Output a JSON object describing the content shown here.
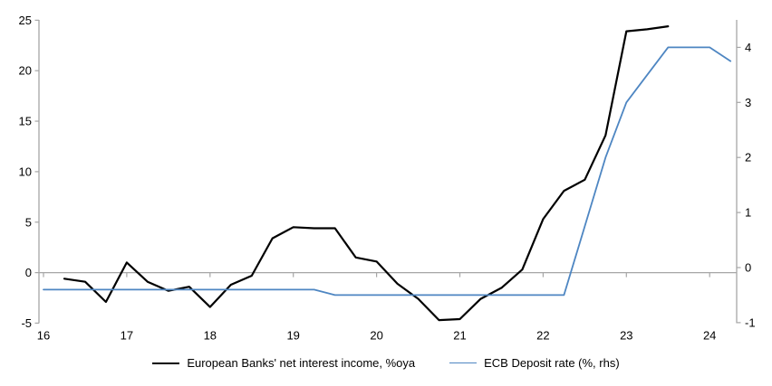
{
  "chart_data": {
    "type": "line",
    "title": "",
    "grid": "zero-line-only",
    "legend_position": "bottom-center",
    "x_axis": {
      "ticks": [
        16,
        17,
        18,
        19,
        20,
        21,
        22,
        23,
        24
      ],
      "tick_labels": [
        "16",
        "17",
        "18",
        "19",
        "20",
        "21",
        "22",
        "23",
        "24"
      ],
      "range": [
        15.95,
        24.33
      ]
    },
    "left_axis": {
      "ticks": [
        -5,
        0,
        5,
        10,
        15,
        20,
        25
      ],
      "tick_labels": [
        "-5",
        "0",
        "5",
        "10",
        "15",
        "20",
        "25"
      ],
      "range": [
        -5,
        25
      ]
    },
    "right_axis": {
      "ticks": [
        -1,
        0,
        1,
        2,
        3,
        4
      ],
      "tick_labels": [
        "-1",
        "0",
        "1",
        "2",
        "3",
        "4"
      ],
      "range": [
        -1.1,
        4.5
      ]
    },
    "series": [
      {
        "name": "European Banks' net interest income, %oya",
        "axis": "left",
        "color": "#000000",
        "stroke_width": 2.2,
        "x": [
          16.25,
          16.5,
          16.75,
          17.0,
          17.25,
          17.5,
          17.75,
          18.0,
          18.25,
          18.5,
          18.75,
          19.0,
          19.25,
          19.5,
          19.75,
          20.0,
          20.25,
          20.5,
          20.75,
          21.0,
          21.25,
          21.5,
          21.75,
          22.0,
          22.25,
          22.5,
          22.75,
          23.0,
          23.25,
          23.5
        ],
        "values": [
          -0.6,
          -0.9,
          -2.9,
          1.0,
          -0.9,
          -1.8,
          -1.4,
          -3.4,
          -1.2,
          -0.3,
          3.4,
          4.5,
          4.4,
          4.4,
          1.5,
          1.1,
          -1.1,
          -2.6,
          -4.7,
          -4.6,
          -2.6,
          -1.5,
          0.3,
          5.3,
          8.1,
          9.2,
          13.6,
          23.9,
          24.1,
          24.4
        ]
      },
      {
        "name": "ECB Deposit rate (%, rhs)",
        "axis": "right",
        "color": "#4e86c2",
        "stroke_width": 1.8,
        "x": [
          16.0,
          16.25,
          16.5,
          16.75,
          17.0,
          17.25,
          17.5,
          17.75,
          18.0,
          18.25,
          18.5,
          18.75,
          19.0,
          19.25,
          19.5,
          19.75,
          20.0,
          20.25,
          20.5,
          20.75,
          21.0,
          21.25,
          21.5,
          21.75,
          22.0,
          22.25,
          22.5,
          22.75,
          23.0,
          23.25,
          23.5,
          23.75,
          24.0,
          24.25
        ],
        "values": [
          -0.4,
          -0.4,
          -0.4,
          -0.4,
          -0.4,
          -0.4,
          -0.4,
          -0.4,
          -0.4,
          -0.4,
          -0.4,
          -0.4,
          -0.4,
          -0.4,
          -0.5,
          -0.5,
          -0.5,
          -0.5,
          -0.5,
          -0.5,
          -0.5,
          -0.5,
          -0.5,
          -0.5,
          -0.5,
          -0.5,
          0.75,
          2.0,
          3.0,
          3.5,
          4.0,
          4.0,
          4.0,
          3.75
        ]
      }
    ]
  },
  "colors": {
    "axis": "#a6a6a6",
    "zero_line": "#a6a6a6",
    "text": "#000000",
    "background": "#ffffff"
  },
  "legend": {
    "items": [
      {
        "label": "European Banks' net interest income, %oya"
      },
      {
        "label": "ECB Deposit rate (%, rhs)"
      }
    ]
  }
}
